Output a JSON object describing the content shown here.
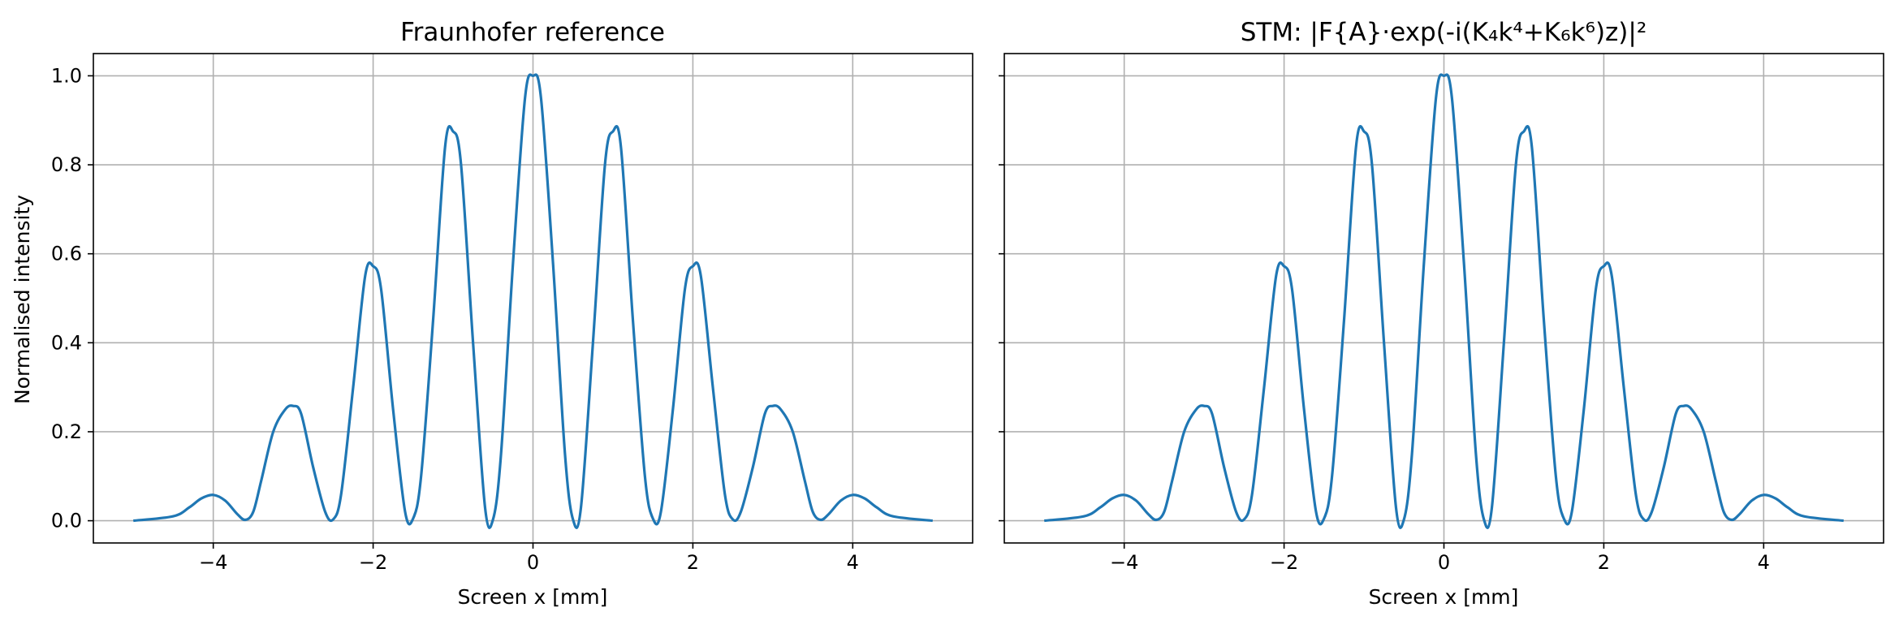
{
  "chart_data": [
    {
      "type": "line",
      "title": "Fraunhofer reference",
      "xlabel": "Screen  x  [mm]",
      "ylabel": "Normalised intensity",
      "xlim": [
        -5.5,
        5.5
      ],
      "ylim": [
        -0.05,
        1.05
      ],
      "xticks": [
        -4,
        -2,
        0,
        2,
        4
      ],
      "xtick_labels": [
        "−4",
        "−2",
        "0",
        "2",
        "4"
      ],
      "yticks": [
        0.0,
        0.2,
        0.4,
        0.6,
        0.8,
        1.0
      ],
      "ytick_labels": [
        "0.0",
        "0.2",
        "0.4",
        "0.6",
        "0.8",
        "1.0"
      ],
      "grid": true,
      "line_color": "#1f77b4",
      "series": [
        {
          "x": [
            -5.0,
            -4.5,
            -4.3,
            -4.15,
            -4.0,
            -3.85,
            -3.7,
            -3.6,
            -3.5,
            -3.4,
            -3.25,
            -3.1,
            -3.0,
            -2.9,
            -2.75,
            -2.6,
            -2.5,
            -2.4,
            -2.25,
            -2.1,
            -2.0,
            -1.9,
            -1.75,
            -1.6,
            -1.5,
            -1.4,
            -1.25,
            -1.1,
            -1.0,
            -0.9,
            -0.75,
            -0.6,
            -0.5,
            -0.4,
            -0.25,
            -0.1,
            0.0,
            0.1,
            0.25,
            0.4,
            0.5,
            0.6,
            0.75,
            0.9,
            1.0,
            1.1,
            1.25,
            1.4,
            1.5,
            1.6,
            1.75,
            1.9,
            2.0,
            2.1,
            2.25,
            2.4,
            2.5,
            2.6,
            2.75,
            2.9,
            3.0,
            3.1,
            3.25,
            3.4,
            3.5,
            3.6,
            3.7,
            3.85,
            4.0,
            4.15,
            4.3,
            4.5,
            5.0
          ],
          "y": [
            0.0,
            0.01,
            0.03,
            0.05,
            0.058,
            0.045,
            0.015,
            0.002,
            0.02,
            0.09,
            0.2,
            0.25,
            0.258,
            0.24,
            0.12,
            0.02,
            0.003,
            0.06,
            0.3,
            0.55,
            0.572,
            0.52,
            0.25,
            0.02,
            0.005,
            0.1,
            0.45,
            0.84,
            0.875,
            0.8,
            0.4,
            0.03,
            0.003,
            0.15,
            0.58,
            0.95,
            1.0,
            0.95,
            0.58,
            0.15,
            0.003,
            0.03,
            0.4,
            0.8,
            0.875,
            0.84,
            0.45,
            0.1,
            0.005,
            0.02,
            0.25,
            0.52,
            0.572,
            0.55,
            0.3,
            0.06,
            0.003,
            0.02,
            0.12,
            0.24,
            0.258,
            0.25,
            0.2,
            0.09,
            0.02,
            0.002,
            0.015,
            0.045,
            0.058,
            0.05,
            0.03,
            0.01,
            0.0
          ]
        }
      ]
    },
    {
      "type": "line",
      "title": "STM:  |F{A}·exp(-i(K₄k⁴+K₆k⁶)z)|²",
      "xlabel": "Screen  x  [mm]",
      "ylabel": "",
      "xlim": [
        -5.5,
        5.5
      ],
      "ylim": [
        -0.05,
        1.05
      ],
      "xticks": [
        -4,
        -2,
        0,
        2,
        4
      ],
      "xtick_labels": [
        "−4",
        "−2",
        "0",
        "2",
        "4"
      ],
      "yticks": [
        0.0,
        0.2,
        0.4,
        0.6,
        0.8,
        1.0
      ],
      "ytick_labels": [
        "",
        "",
        "",
        "",
        "",
        ""
      ],
      "grid": true,
      "line_color": "#1f77b4",
      "series": [
        {
          "x": [
            -5.0,
            -4.5,
            -4.3,
            -4.15,
            -4.0,
            -3.85,
            -3.7,
            -3.6,
            -3.5,
            -3.4,
            -3.25,
            -3.1,
            -3.0,
            -2.9,
            -2.75,
            -2.6,
            -2.5,
            -2.4,
            -2.25,
            -2.1,
            -2.0,
            -1.9,
            -1.75,
            -1.6,
            -1.5,
            -1.4,
            -1.25,
            -1.1,
            -1.0,
            -0.9,
            -0.75,
            -0.6,
            -0.5,
            -0.4,
            -0.25,
            -0.1,
            0.0,
            0.1,
            0.25,
            0.4,
            0.5,
            0.6,
            0.75,
            0.9,
            1.0,
            1.1,
            1.25,
            1.4,
            1.5,
            1.6,
            1.75,
            1.9,
            2.0,
            2.1,
            2.25,
            2.4,
            2.5,
            2.6,
            2.75,
            2.9,
            3.0,
            3.1,
            3.25,
            3.4,
            3.5,
            3.6,
            3.7,
            3.85,
            4.0,
            4.15,
            4.3,
            4.5,
            5.0
          ],
          "y": [
            0.0,
            0.01,
            0.03,
            0.05,
            0.058,
            0.045,
            0.015,
            0.002,
            0.02,
            0.09,
            0.2,
            0.25,
            0.258,
            0.24,
            0.12,
            0.02,
            0.003,
            0.06,
            0.3,
            0.55,
            0.572,
            0.52,
            0.25,
            0.02,
            0.005,
            0.1,
            0.45,
            0.84,
            0.875,
            0.8,
            0.4,
            0.03,
            0.003,
            0.15,
            0.58,
            0.95,
            1.0,
            0.95,
            0.58,
            0.15,
            0.003,
            0.03,
            0.4,
            0.8,
            0.875,
            0.84,
            0.45,
            0.1,
            0.005,
            0.02,
            0.25,
            0.52,
            0.572,
            0.55,
            0.3,
            0.06,
            0.003,
            0.02,
            0.12,
            0.24,
            0.258,
            0.25,
            0.2,
            0.09,
            0.02,
            0.002,
            0.015,
            0.045,
            0.058,
            0.05,
            0.03,
            0.01,
            0.0
          ]
        }
      ]
    }
  ]
}
